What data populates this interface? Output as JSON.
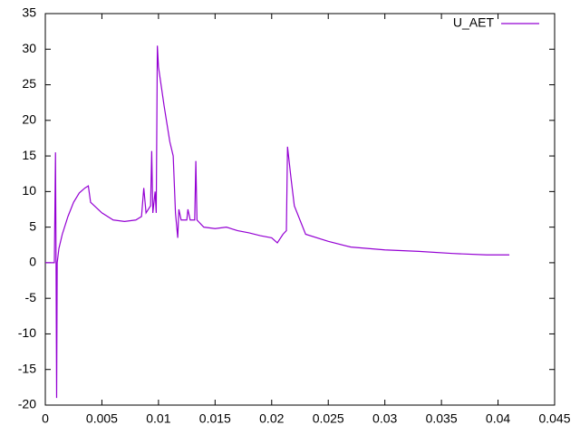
{
  "chart_data": {
    "type": "line",
    "x": [
      0,
      0.0008,
      0.0009,
      0.00095,
      0.001,
      0.00105,
      0.0012,
      0.0015,
      0.002,
      0.0025,
      0.003,
      0.0035,
      0.0038,
      0.004,
      0.005,
      0.006,
      0.007,
      0.008,
      0.0085,
      0.0087,
      0.0089,
      0.0093,
      0.0094,
      0.0095,
      0.0097,
      0.0098,
      0.0099,
      0.01,
      0.0105,
      0.011,
      0.0113,
      0.0115,
      0.0117,
      0.0118,
      0.012,
      0.0125,
      0.0126,
      0.0128,
      0.0132,
      0.0133,
      0.0134,
      0.014,
      0.015,
      0.016,
      0.017,
      0.018,
      0.019,
      0.02,
      0.0205,
      0.021,
      0.0213,
      0.0214,
      0.0217,
      0.022,
      0.023,
      0.025,
      0.027,
      0.03,
      0.033,
      0.036,
      0.039,
      0.041
    ],
    "series": [
      {
        "name": "U_AET",
        "color": "#9400d3",
        "values": [
          0,
          0,
          15.5,
          0,
          -19,
          0,
          2,
          4,
          6.5,
          8.5,
          9.8,
          10.5,
          10.8,
          8.5,
          7,
          6,
          5.8,
          6,
          6.5,
          10.5,
          7,
          8,
          15.7,
          7,
          10,
          7,
          30.5,
          27.5,
          22,
          17,
          15,
          7,
          3.5,
          7.5,
          6,
          6,
          7.5,
          6,
          6,
          14.3,
          6,
          5,
          4.8,
          5,
          4.5,
          4.2,
          3.8,
          3.5,
          2.8,
          4,
          4.5,
          16.3,
          12,
          8,
          4,
          3,
          2.2,
          1.8,
          1.6,
          1.3,
          1.1,
          1.1
        ]
      }
    ],
    "xlim": [
      0,
      0.045
    ],
    "ylim": [
      -20,
      35
    ],
    "xticks": [
      0,
      0.005,
      0.01,
      0.015,
      0.02,
      0.025,
      0.03,
      0.035,
      0.04,
      0.045
    ],
    "yticks": [
      -20,
      -15,
      -10,
      -5,
      0,
      5,
      10,
      15,
      20,
      25,
      30,
      35
    ],
    "legend": "top-right"
  }
}
